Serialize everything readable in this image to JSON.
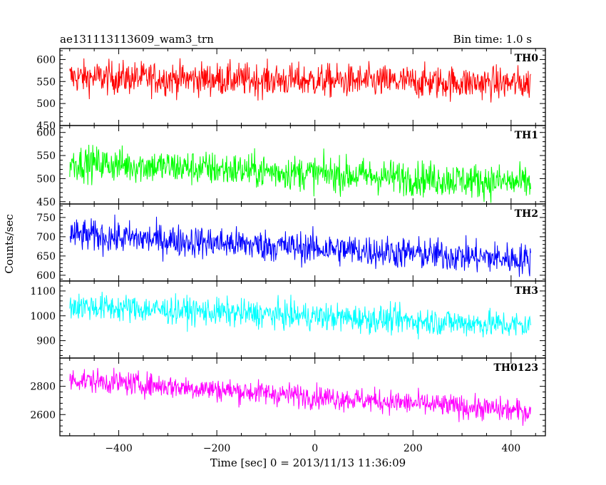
{
  "chart_data": {
    "type": "line",
    "title": "ae131113113609_wam3_trn",
    "subtitle": "Bin time: 1.0 s",
    "xlabel": "Time [sec] 0 = 2013/11/13 11:36:09",
    "ylabel": "Counts/sec",
    "xlim": [
      -520,
      470
    ],
    "x_range": [
      -500,
      440
    ],
    "x_ticks": [
      -400,
      -200,
      0,
      200,
      400
    ],
    "x_tick_labels": [
      "−400",
      "−200",
      "0",
      "200",
      "400"
    ],
    "grid": false,
    "panels": [
      {
        "name": "TH0",
        "color": "#ff0000",
        "ylim": [
          450,
          625
        ],
        "y_ticks": [
          450,
          500,
          550,
          600
        ],
        "trend_start": 560,
        "trend_end": 545,
        "noise": 27
      },
      {
        "name": "TH1",
        "color": "#00ff00",
        "ylim": [
          445,
          615
        ],
        "y_ticks": [
          450,
          500,
          550,
          600
        ],
        "trend_start": 535,
        "trend_end": 490,
        "noise": 27
      },
      {
        "name": "TH2",
        "color": "#0000ff",
        "ylim": [
          585,
          785
        ],
        "y_ticks": [
          600,
          650,
          700,
          750
        ],
        "trend_start": 705,
        "trend_end": 640,
        "noise": 30
      },
      {
        "name": "TH3",
        "color": "#00ffff",
        "ylim": [
          830,
          1140
        ],
        "y_ticks": [
          900,
          1000,
          1100
        ],
        "trend_start": 1040,
        "trend_end": 960,
        "noise": 40
      },
      {
        "name": "TH0123",
        "color": "#ff00ff",
        "ylim": [
          2450,
          3000
        ],
        "y_ticks": [
          2600,
          2800
        ],
        "trend_start": 2850,
        "trend_end": 2620,
        "noise": 60
      }
    ]
  }
}
